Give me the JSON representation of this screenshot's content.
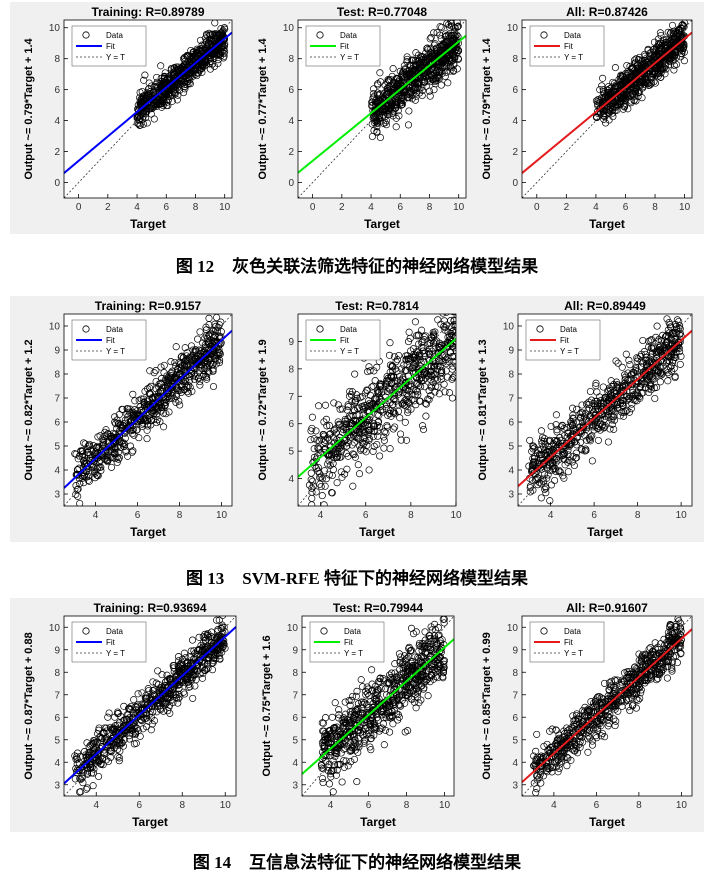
{
  "figures": [
    {
      "caption_num": "图 12",
      "caption_text": "灰色关联法筛选特征的神经网络模型结果",
      "charts": [
        {
          "title": "Training: R=0.89789",
          "ylabel": "Output ~= 0.79*Target + 1.4",
          "xlabel": "Target",
          "xlim": [
            -1,
            10.5
          ],
          "ylim": [
            -1,
            10.5
          ],
          "xticks": [
            0,
            2,
            4,
            6,
            8,
            10
          ],
          "yticks": [
            0,
            2,
            4,
            6,
            8,
            10
          ],
          "fit": {
            "slope": 0.79,
            "intercept": 1.4,
            "color": "#0000ff"
          },
          "cloud": {
            "xmin": 4,
            "xmax": 10,
            "spread": 0.55
          },
          "seed": 11
        },
        {
          "title": "Test: R=0.77048",
          "ylabel": "Output ~= 0.77*Target + 1.4",
          "xlabel": "Target",
          "xlim": [
            -1,
            10.5
          ],
          "ylim": [
            -1,
            10.5
          ],
          "xticks": [
            0,
            2,
            4,
            6,
            8,
            10
          ],
          "yticks": [
            0,
            2,
            4,
            6,
            8,
            10
          ],
          "fit": {
            "slope": 0.77,
            "intercept": 1.4,
            "color": "#00ee00"
          },
          "cloud": {
            "xmin": 4,
            "xmax": 10,
            "spread": 0.75
          },
          "seed": 23
        },
        {
          "title": "All: R=0.87426",
          "ylabel": "Output ~= 0.79*Target + 1.4",
          "xlabel": "Target",
          "xlim": [
            -1,
            10.5
          ],
          "ylim": [
            -1,
            10.5
          ],
          "xticks": [
            0,
            2,
            4,
            6,
            8,
            10
          ],
          "yticks": [
            0,
            2,
            4,
            6,
            8,
            10
          ],
          "fit": {
            "slope": 0.79,
            "intercept": 1.4,
            "color": "#e41a1c"
          },
          "cloud": {
            "xmin": 4,
            "xmax": 10,
            "spread": 0.6
          },
          "seed": 37
        }
      ]
    },
    {
      "caption_num": "图 13",
      "caption_text": "SVM-RFE 特征下的神经网络模型结果",
      "charts": [
        {
          "title": "Training: R=0.9157",
          "ylabel": "Output ~= 0.82*Target + 1.2",
          "xlabel": "Target",
          "xlim": [
            2.5,
            10.5
          ],
          "ylim": [
            2.5,
            10.5
          ],
          "xticks": [
            4,
            6,
            8,
            10
          ],
          "yticks": [
            3,
            4,
            5,
            6,
            7,
            8,
            9,
            10
          ],
          "fit": {
            "slope": 0.82,
            "intercept": 1.2,
            "color": "#0000ff"
          },
          "cloud": {
            "xmin": 3,
            "xmax": 10,
            "spread": 0.5
          },
          "seed": 41
        },
        {
          "title": "Test: R=0.7814",
          "ylabel": "Output ~= 0.72*Target + 1.9",
          "xlabel": "Target",
          "xlim": [
            3,
            10
          ],
          "ylim": [
            3,
            10
          ],
          "xticks": [
            4,
            6,
            8,
            10
          ],
          "yticks": [
            4,
            5,
            6,
            7,
            8,
            9
          ],
          "fit": {
            "slope": 0.72,
            "intercept": 1.9,
            "color": "#00ee00"
          },
          "cloud": {
            "xmin": 3.5,
            "xmax": 10,
            "spread": 0.8
          },
          "seed": 53
        },
        {
          "title": "All: R=0.89449",
          "ylabel": "Output ~= 0.81*Target + 1.3",
          "xlabel": "Target",
          "xlim": [
            2.5,
            10.5
          ],
          "ylim": [
            2.5,
            10.5
          ],
          "xticks": [
            4,
            6,
            8,
            10
          ],
          "yticks": [
            3,
            4,
            5,
            6,
            7,
            8,
            9,
            10
          ],
          "fit": {
            "slope": 0.81,
            "intercept": 1.3,
            "color": "#e41a1c"
          },
          "cloud": {
            "xmin": 3,
            "xmax": 10,
            "spread": 0.55
          },
          "seed": 67
        }
      ]
    },
    {
      "caption_num": "图 14",
      "caption_text": "互信息法特征下的神经网络模型结果",
      "charts": [
        {
          "title": "Training: R=0.93694",
          "ylabel": "Output ~= 0.87*Target + 0.88",
          "xlabel": "Target",
          "xlim": [
            2.5,
            10.5
          ],
          "ylim": [
            2.5,
            10.5
          ],
          "xticks": [
            4,
            6,
            8,
            10
          ],
          "yticks": [
            3,
            4,
            5,
            6,
            7,
            8,
            9,
            10
          ],
          "fit": {
            "slope": 0.87,
            "intercept": 0.88,
            "color": "#0000ff"
          },
          "cloud": {
            "xmin": 3,
            "xmax": 10,
            "spread": 0.45
          },
          "seed": 71
        },
        {
          "title": "Test: R=0.79944",
          "ylabel": "Output ~= 0.75*Target + 1.6",
          "xlabel": "Target",
          "xlim": [
            2.5,
            10.5
          ],
          "ylim": [
            2.5,
            10.5
          ],
          "xticks": [
            4,
            6,
            8,
            10
          ],
          "yticks": [
            3,
            4,
            5,
            6,
            7,
            8,
            9,
            10
          ],
          "fit": {
            "slope": 0.75,
            "intercept": 1.6,
            "color": "#00ee00"
          },
          "cloud": {
            "xmin": 3.5,
            "xmax": 10,
            "spread": 0.75
          },
          "seed": 83
        },
        {
          "title": "All: R=0.91607",
          "ylabel": "Output ~= 0.85*Target + 0.99",
          "xlabel": "Target",
          "xlim": [
            2.5,
            10.5
          ],
          "ylim": [
            2.5,
            10.5
          ],
          "xticks": [
            4,
            6,
            8,
            10
          ],
          "yticks": [
            3,
            4,
            5,
            6,
            7,
            8,
            9,
            10
          ],
          "fit": {
            "slope": 0.85,
            "intercept": 0.99,
            "color": "#e41a1c"
          },
          "cloud": {
            "xmin": 3,
            "xmax": 10,
            "spread": 0.5
          },
          "seed": 97
        }
      ]
    }
  ],
  "legend": {
    "data_label": "Data",
    "fit_label": "Fit",
    "ident_label": "Y = T"
  }
}
